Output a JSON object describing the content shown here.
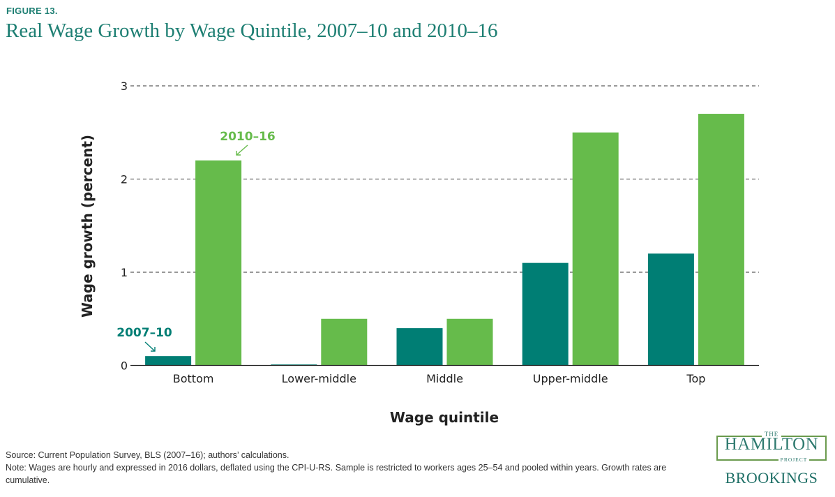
{
  "figure_label": "FIGURE 13.",
  "chart_data": {
    "type": "bar",
    "title": "Real Wage Growth by Wage Quintile, 2007–10 and 2010–16",
    "xlabel": "Wage quintile",
    "ylabel": "Wage growth (percent)",
    "categories": [
      "Bottom",
      "Lower-middle",
      "Middle",
      "Upper-middle",
      "Top"
    ],
    "series": [
      {
        "name": "2007–10",
        "values": [
          0.1,
          0.01,
          0.4,
          1.1,
          1.2
        ],
        "color": "#007e74"
      },
      {
        "name": "2010–16",
        "values": [
          2.2,
          0.5,
          0.5,
          2.5,
          2.7
        ],
        "color": "#66bb4b"
      }
    ],
    "ylim": [
      0,
      3
    ],
    "yticks": [
      0,
      1,
      2,
      3
    ],
    "grid": "dashed horizontal",
    "legend": "inline annotations with arrows"
  },
  "source_text": "Source: Current Population Survey, BLS (2007–16); authors’ calculations.",
  "note_text": "Note: Wages are hourly and expressed in 2016 dollars, deflated using the CPI-U-RS. Sample is restricted to workers ages 25–54 and pooled within years. Growth rates are cumulative.",
  "logo": {
    "the": "THE",
    "hamilton": "HAMILTON",
    "project": "PROJECT",
    "brookings": "BROOKINGS"
  }
}
